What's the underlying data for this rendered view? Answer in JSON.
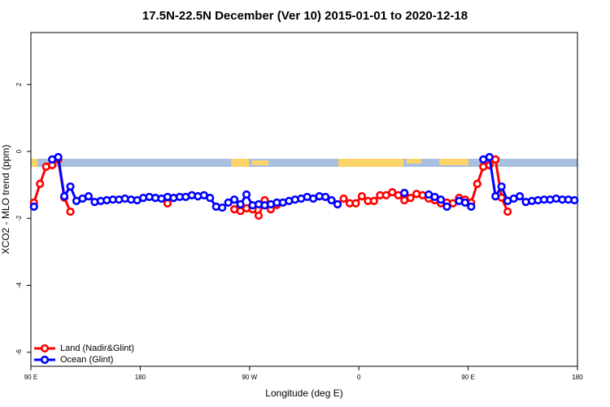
{
  "chart_data": {
    "type": "line",
    "title": "17.5N-22.5N December (Ver 10)   2015-01-01 to 2020-12-18",
    "x_label": "Longitude (deg E)",
    "y_label": "XCO2 - MLO trend (ppm)",
    "xlim": [
      90,
      540
    ],
    "xticks": [
      {
        "value": 90,
        "label": "90 E"
      },
      {
        "value": 180,
        "label": "180"
      },
      {
        "value": 270,
        "label": "90 W"
      },
      {
        "value": 360,
        "label": "0"
      },
      {
        "value": 450,
        "label": "90 E"
      },
      {
        "value": 540,
        "label": "180"
      }
    ],
    "ylim": [
      -6.42,
      3.55
    ],
    "yticks": [
      -6,
      -4,
      -2,
      0,
      2
    ],
    "legend": "lower left",
    "x": [
      92.5,
      97.5,
      102.5,
      107.5,
      112.5,
      117.5,
      122.5,
      127.5,
      132.5,
      137.5,
      142.5,
      147.5,
      152.5,
      157.5,
      162.5,
      167.5,
      172.5,
      177.5,
      182.5,
      187.5,
      192.5,
      197.5,
      202.5,
      207.5,
      212.5,
      217.5,
      222.5,
      227.5,
      232.5,
      237.5,
      242.5,
      247.5,
      252.5,
      257.5,
      262.5,
      267.5,
      272.5,
      277.5,
      282.5,
      287.5,
      292.5,
      297.5,
      302.5,
      307.5,
      312.5,
      317.5,
      322.5,
      327.5,
      332.5,
      337.5,
      342.5,
      347.5,
      352.5,
      357.5,
      362.5,
      367.5,
      372.5,
      377.5,
      382.5,
      387.5,
      392.5,
      397.5,
      402.5,
      407.5,
      412.5,
      417.5,
      422.5,
      427.5,
      432.5,
      437.5,
      442.5,
      447.5,
      452.5,
      457.5,
      462.5,
      467.5,
      472.5,
      477.5,
      482.5,
      487.5,
      492.5,
      497.5,
      502.5,
      507.5,
      512.5,
      517.5,
      522.5,
      527.5,
      532.5,
      537.5
    ],
    "series": [
      {
        "name": "Land (Nadir&Glint)",
        "color": "#ff0000",
        "values": [
          -1.53,
          -0.97,
          -0.46,
          -0.41,
          -0.24,
          -1.38,
          -1.8,
          null,
          null,
          null,
          null,
          null,
          null,
          null,
          null,
          null,
          null,
          null,
          null,
          null,
          null,
          null,
          -1.55,
          null,
          null,
          null,
          null,
          null,
          null,
          null,
          null,
          null,
          null,
          -1.73,
          -1.78,
          -1.7,
          -1.73,
          -1.92,
          -1.46,
          -1.73,
          -1.6,
          null,
          null,
          null,
          null,
          null,
          null,
          null,
          null,
          null,
          -1.58,
          -1.41,
          -1.55,
          -1.55,
          -1.34,
          -1.48,
          -1.48,
          -1.31,
          -1.31,
          -1.22,
          -1.31,
          -1.46,
          -1.39,
          -1.27,
          -1.31,
          -1.41,
          -1.46,
          -1.55,
          -1.53,
          -1.55,
          -1.39,
          -1.44,
          -1.53,
          -0.97,
          -0.46,
          -0.41,
          -0.24,
          -1.38,
          -1.8,
          null,
          null,
          null,
          null,
          null,
          null,
          null,
          null,
          null,
          null,
          null
        ]
      },
      {
        "name": "Ocean (Glint)",
        "color": "#0000ff",
        "values": [
          -1.65,
          null,
          null,
          -0.24,
          -0.17,
          -1.34,
          -1.05,
          -1.48,
          -1.41,
          -1.34,
          -1.51,
          -1.48,
          -1.46,
          -1.44,
          -1.44,
          -1.41,
          -1.44,
          -1.46,
          -1.39,
          -1.36,
          -1.39,
          -1.41,
          -1.36,
          -1.39,
          -1.36,
          -1.36,
          -1.31,
          -1.34,
          -1.31,
          -1.39,
          -1.65,
          -1.68,
          -1.53,
          -1.44,
          -1.58,
          -1.29,
          -1.61,
          -1.58,
          -1.61,
          -1.58,
          -1.53,
          -1.53,
          -1.48,
          -1.44,
          -1.41,
          -1.36,
          -1.41,
          -1.34,
          -1.36,
          -1.46,
          -1.58,
          null,
          null,
          null,
          null,
          null,
          null,
          null,
          null,
          null,
          null,
          -1.24,
          null,
          null,
          null,
          -1.29,
          -1.36,
          -1.44,
          -1.65,
          null,
          -1.48,
          -1.53,
          -1.65,
          null,
          -0.24,
          -0.17,
          -1.34,
          -1.05,
          -1.48,
          -1.41,
          -1.34,
          -1.51,
          -1.48,
          -1.46,
          -1.44,
          -1.44,
          -1.41,
          -1.44,
          -1.44,
          -1.46
        ]
      }
    ]
  }
}
